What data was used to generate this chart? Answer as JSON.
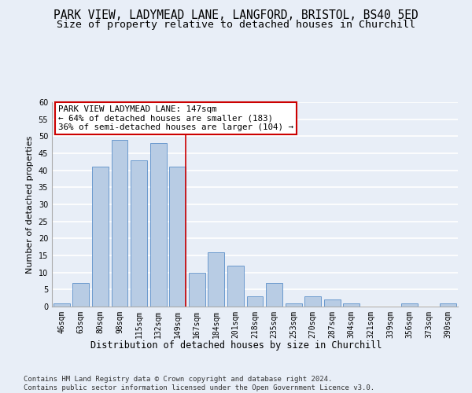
{
  "title1": "PARK VIEW, LADYMEAD LANE, LANGFORD, BRISTOL, BS40 5ED",
  "title2": "Size of property relative to detached houses in Churchill",
  "xlabel": "Distribution of detached houses by size in Churchill",
  "ylabel": "Number of detached properties",
  "categories": [
    "46sqm",
    "63sqm",
    "80sqm",
    "98sqm",
    "115sqm",
    "132sqm",
    "149sqm",
    "167sqm",
    "184sqm",
    "201sqm",
    "218sqm",
    "235sqm",
    "253sqm",
    "270sqm",
    "287sqm",
    "304sqm",
    "321sqm",
    "339sqm",
    "356sqm",
    "373sqm",
    "390sqm"
  ],
  "values": [
    1,
    7,
    41,
    49,
    43,
    48,
    41,
    10,
    16,
    12,
    3,
    7,
    1,
    3,
    2,
    1,
    0,
    0,
    1,
    0,
    1
  ],
  "bar_color": "#b8cce4",
  "bar_edge_color": "#5b8fc9",
  "highlight_index": 6,
  "vline_color": "#cc0000",
  "ylim": [
    0,
    60
  ],
  "yticks": [
    0,
    5,
    10,
    15,
    20,
    25,
    30,
    35,
    40,
    45,
    50,
    55,
    60
  ],
  "annotation_text": "PARK VIEW LADYMEAD LANE: 147sqm\n← 64% of detached houses are smaller (183)\n36% of semi-detached houses are larger (104) →",
  "footer": "Contains HM Land Registry data © Crown copyright and database right 2024.\nContains public sector information licensed under the Open Government Licence v3.0.",
  "background_color": "#e8eef7",
  "plot_bg_color": "#e8eef7",
  "grid_color": "#ffffff",
  "annotation_box_color": "#ffffff",
  "annotation_border_color": "#cc0000",
  "title1_fontsize": 10.5,
  "title2_fontsize": 9.5,
  "xlabel_fontsize": 8.5,
  "ylabel_fontsize": 8,
  "tick_fontsize": 7,
  "annotation_fontsize": 7.8,
  "footer_fontsize": 6.5
}
